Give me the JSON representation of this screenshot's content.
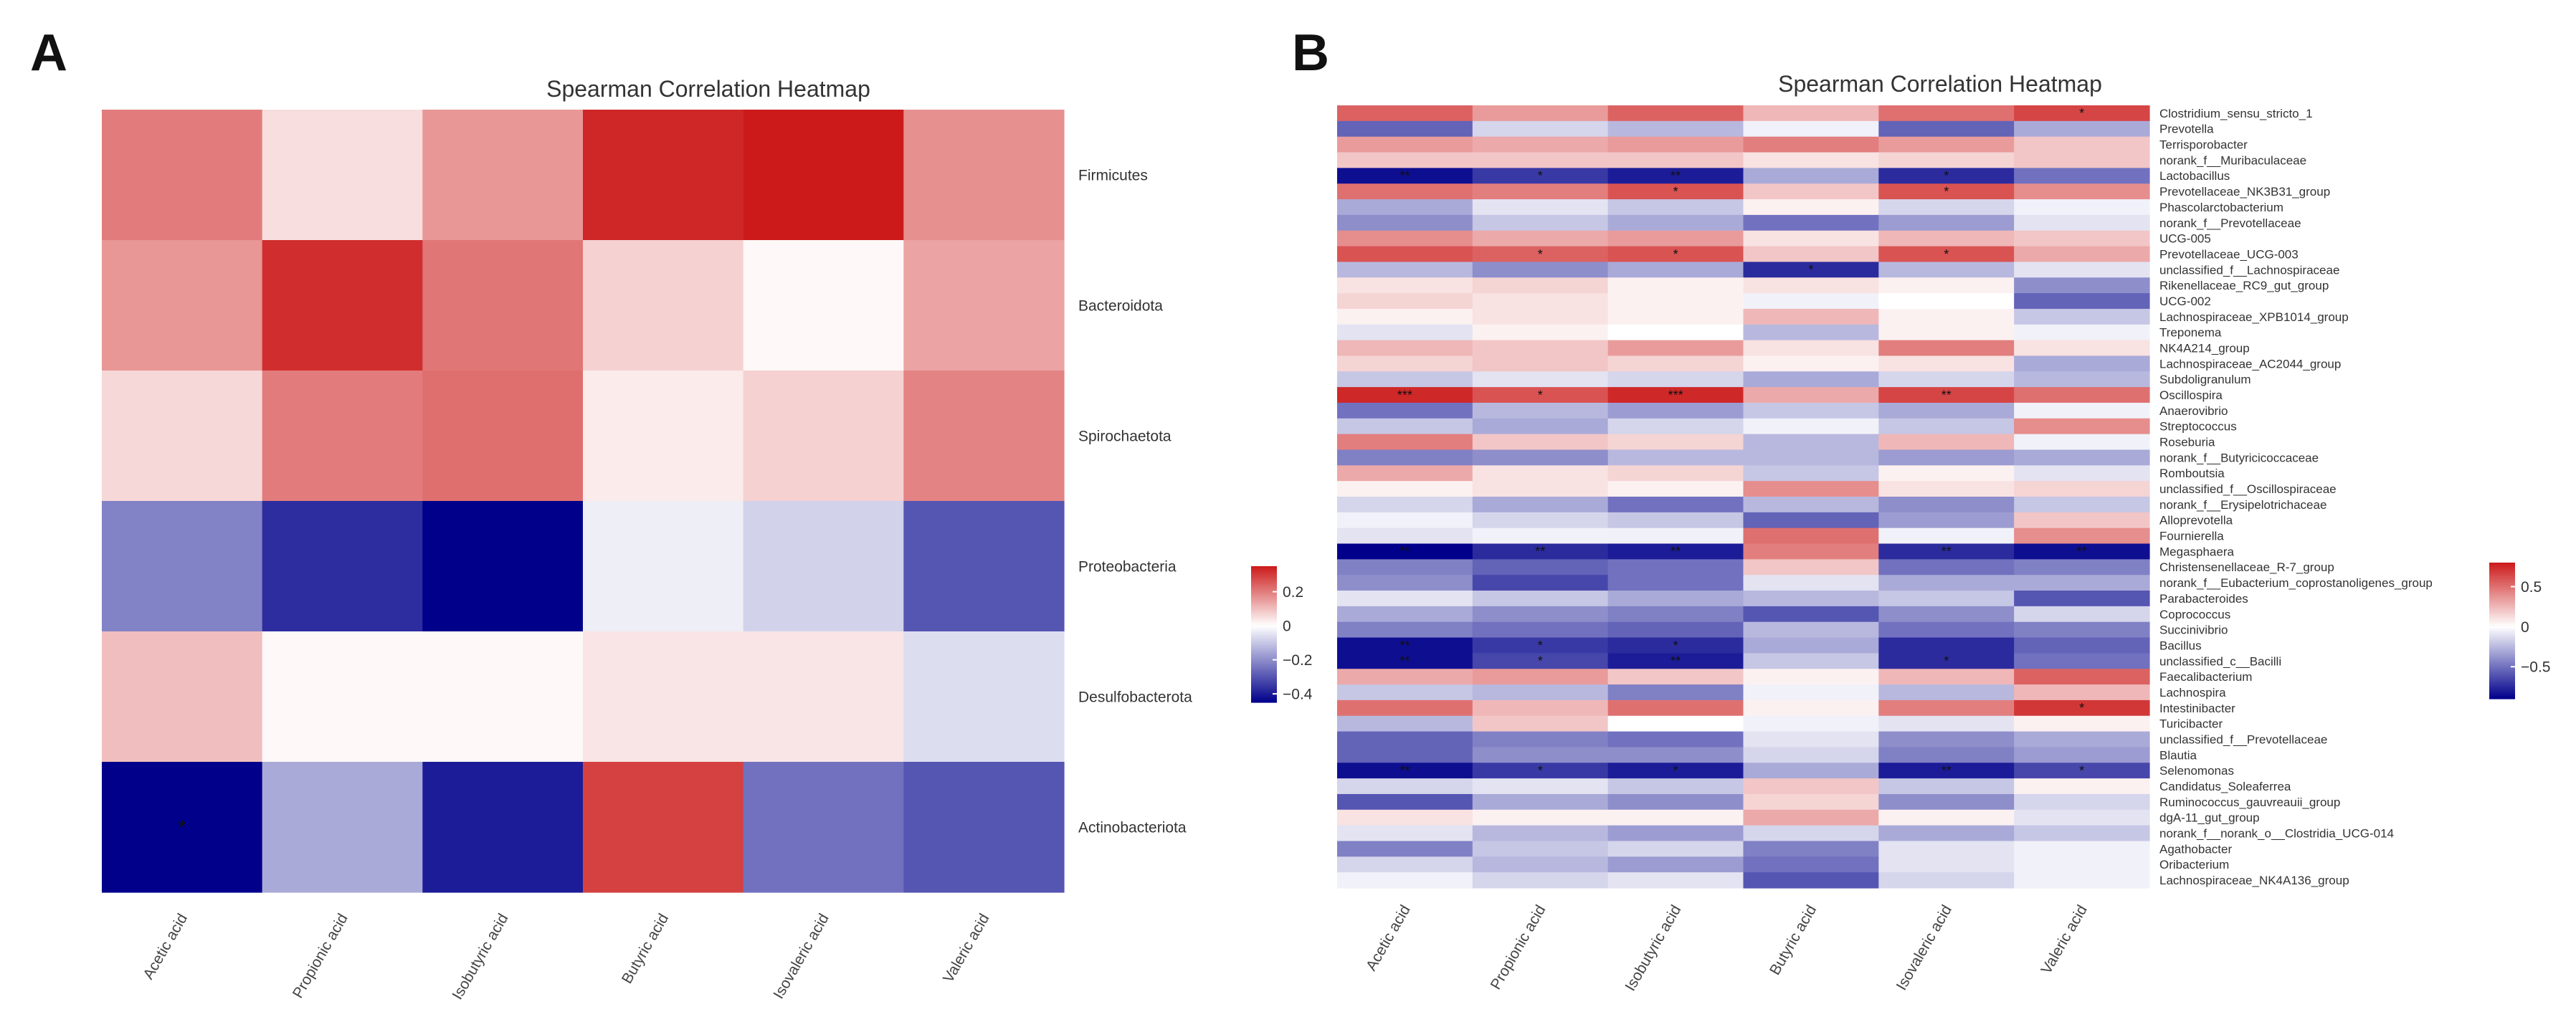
{
  "chart_data": [
    {
      "panel_label": "A",
      "type": "heatmap",
      "title": "Spearman Correlation Heatmap",
      "x_categories": [
        "Acetic acid",
        "Propionic acid",
        "Isobutyric acid",
        "Butyric acid",
        "Isovaleric acid",
        "Valeric acid"
      ],
      "y_categories": [
        "Firmicutes",
        "Bacteroidota",
        "Spirochaetota",
        "Proteobacteria",
        "Desulfobacterota",
        "Actinobacteriota"
      ],
      "values": [
        [
          0.2,
          0.05,
          0.16,
          0.33,
          0.35,
          0.17
        ],
        [
          0.16,
          0.32,
          0.21,
          0.07,
          0.01,
          0.14
        ],
        [
          0.06,
          0.2,
          0.22,
          0.03,
          0.07,
          0.19
        ],
        [
          -0.22,
          -0.37,
          -0.45,
          -0.03,
          -0.08,
          -0.3
        ],
        [
          0.1,
          0.01,
          0.01,
          0.04,
          0.04,
          -0.06
        ],
        [
          -0.45,
          -0.15,
          -0.4,
          0.29,
          -0.25,
          -0.3
        ]
      ],
      "significance": [
        [
          "",
          "",
          "",
          "",
          "",
          ""
        ],
        [
          "",
          "",
          "",
          "",
          "",
          ""
        ],
        [
          "",
          "",
          "",
          "",
          "",
          ""
        ],
        [
          "",
          "",
          "",
          "",
          "",
          ""
        ],
        [
          "",
          "",
          "",
          "",
          "",
          ""
        ],
        [
          "*",
          "",
          "",
          "",
          "",
          ""
        ]
      ],
      "colorbar": {
        "min": -0.45,
        "max": 0.35,
        "ticks": [
          0.2,
          0,
          -0.2,
          -0.4
        ],
        "tick_labels": [
          "0.2",
          "0",
          "−0.2",
          "−0.4"
        ]
      },
      "colors": {
        "low": "#00008b",
        "mid": "#ffffff",
        "high": "#cc1a1a"
      }
    },
    {
      "panel_label": "B",
      "type": "heatmap",
      "title": "Spearman Correlation Heatmap",
      "x_categories": [
        "Acetic acid",
        "Propionic acid",
        "Isobutyric acid",
        "Butyric acid",
        "Isovaleric acid",
        "Valeric acid"
      ],
      "y_categories": [
        "Clostridium_sensu_stricto_1",
        "Prevotella",
        "Terrisporobacter",
        "norank_f__Muribaculaceae",
        "Lactobacillus",
        "Prevotellaceae_NK3B31_group",
        "Phascolarctobacterium",
        "norank_f__Prevotellaceae",
        "UCG-005",
        "Prevotellaceae_UCG-003",
        "unclassified_f__Lachnospiraceae",
        "Rikenellaceae_RC9_gut_group",
        "UCG-002",
        "Lachnospiraceae_XPB1014_group",
        "Treponema",
        "NK4A214_group",
        "Lachnospiraceae_AC2044_group",
        "Subdoligranulum",
        "Oscillospira",
        "Anaerovibrio",
        "Streptococcus",
        "Roseburia",
        "norank_f__Butyricicoccaceae",
        "Romboutsia",
        "unclassified_f__Oscillospiraceae",
        "norank_f__Erysipelotrichaceae",
        "Alloprevotella",
        "Fournierella",
        "Megasphaera",
        "Christensenellaceae_R-7_group",
        "norank_f__Eubacterium_coprostanoligenes_group",
        "Parabacteroides",
        "Coprococcus",
        "Succinivibrio",
        "Bacillus",
        "unclassified_c__Bacilli",
        "Faecalibacterium",
        "Lachnospira",
        "Intestinibacter",
        "Turicibacter",
        "unclassified_f__Prevotellaceae",
        "Blautia",
        "Selenomonas",
        "Candidatus_Soleaferrea",
        "Ruminococcus_gauvreauii_group",
        "dgA-11_gut_group",
        "norank_f__norank_o__Clostridia_UCG-014",
        "Agathobacter",
        "Oribacterium",
        "Lachnospiraceae_NK4A136_group"
      ],
      "values": [
        [
          0.55,
          0.35,
          0.55,
          0.25,
          0.5,
          0.65
        ],
        [
          -0.55,
          -0.15,
          -0.25,
          -0.05,
          -0.55,
          -0.3
        ],
        [
          0.35,
          0.3,
          0.35,
          0.45,
          0.35,
          0.2
        ],
        [
          0.2,
          0.2,
          0.2,
          0.1,
          0.15,
          0.2
        ],
        [
          -0.85,
          -0.7,
          -0.8,
          -0.3,
          -0.75,
          -0.5
        ],
        [
          0.5,
          0.45,
          0.6,
          0.2,
          0.6,
          0.4
        ],
        [
          -0.3,
          -0.1,
          -0.2,
          0.05,
          -0.15,
          -0.05
        ],
        [
          -0.4,
          -0.2,
          -0.3,
          -0.5,
          -0.35,
          -0.1
        ],
        [
          0.4,
          0.3,
          0.35,
          0.1,
          0.25,
          0.2
        ],
        [
          0.6,
          0.55,
          0.6,
          0.2,
          0.6,
          0.3
        ],
        [
          -0.25,
          -0.4,
          -0.3,
          -0.75,
          -0.25,
          -0.1
        ],
        [
          0.1,
          0.15,
          0.05,
          0.1,
          0.05,
          -0.4
        ],
        [
          0.15,
          0.1,
          0.05,
          -0.05,
          0.0,
          -0.55
        ],
        [
          0.05,
          0.1,
          0.05,
          0.25,
          0.05,
          -0.2
        ],
        [
          -0.1,
          0.05,
          0.0,
          -0.25,
          0.05,
          -0.05
        ],
        [
          0.25,
          0.2,
          0.35,
          0.1,
          0.45,
          0.1
        ],
        [
          0.15,
          0.2,
          0.15,
          0.05,
          0.1,
          -0.3
        ],
        [
          -0.2,
          -0.1,
          -0.15,
          -0.3,
          -0.15,
          -0.25
        ],
        [
          0.75,
          0.6,
          0.75,
          0.3,
          0.65,
          0.5
        ],
        [
          -0.5,
          -0.25,
          -0.35,
          -0.2,
          -0.3,
          -0.05
        ],
        [
          -0.2,
          -0.3,
          -0.15,
          -0.05,
          -0.2,
          0.4
        ],
        [
          0.45,
          0.2,
          0.15,
          -0.25,
          0.25,
          -0.05
        ],
        [
          -0.45,
          -0.4,
          -0.25,
          -0.25,
          -0.35,
          -0.3
        ],
        [
          0.3,
          0.1,
          0.15,
          -0.2,
          0.05,
          -0.1
        ],
        [
          0.05,
          0.1,
          0.05,
          0.4,
          0.1,
          0.15
        ],
        [
          -0.15,
          -0.3,
          -0.5,
          -0.25,
          -0.4,
          -0.2
        ],
        [
          -0.05,
          -0.15,
          -0.2,
          -0.55,
          -0.35,
          0.2
        ],
        [
          -0.1,
          -0.05,
          -0.05,
          0.5,
          -0.05,
          0.4
        ],
        [
          -0.9,
          -0.75,
          -0.8,
          0.45,
          -0.75,
          -0.85
        ],
        [
          -0.45,
          -0.55,
          -0.5,
          0.2,
          -0.5,
          -0.45
        ],
        [
          -0.4,
          -0.65,
          -0.5,
          -0.1,
          -0.3,
          -0.3
        ],
        [
          -0.1,
          -0.2,
          -0.3,
          -0.25,
          -0.2,
          -0.6
        ],
        [
          -0.3,
          -0.4,
          -0.45,
          -0.6,
          -0.4,
          -0.15
        ],
        [
          -0.45,
          -0.5,
          -0.55,
          -0.25,
          -0.5,
          -0.45
        ],
        [
          -0.85,
          -0.7,
          -0.75,
          -0.3,
          -0.75,
          -0.55
        ],
        [
          -0.85,
          -0.65,
          -0.8,
          -0.2,
          -0.75,
          -0.5
        ],
        [
          0.3,
          0.35,
          0.2,
          0.05,
          0.25,
          0.55
        ],
        [
          -0.2,
          -0.25,
          -0.45,
          -0.05,
          -0.25,
          0.25
        ],
        [
          0.5,
          0.25,
          0.5,
          0.05,
          0.45,
          0.7
        ],
        [
          -0.25,
          0.2,
          0.0,
          -0.05,
          -0.1,
          0.05
        ],
        [
          -0.55,
          -0.45,
          -0.5,
          -0.1,
          -0.4,
          -0.3
        ],
        [
          -0.55,
          -0.4,
          -0.4,
          -0.15,
          -0.45,
          -0.35
        ],
        [
          -0.85,
          -0.7,
          -0.8,
          -0.3,
          -0.8,
          -0.65
        ],
        [
          -0.15,
          -0.1,
          -0.2,
          0.2,
          -0.2,
          0.05
        ],
        [
          -0.6,
          -0.3,
          -0.4,
          0.15,
          -0.4,
          -0.15
        ],
        [
          0.1,
          0.05,
          0.05,
          0.3,
          0.05,
          -0.1
        ],
        [
          -0.1,
          -0.25,
          -0.35,
          -0.15,
          -0.3,
          -0.2
        ],
        [
          -0.45,
          -0.2,
          -0.15,
          -0.45,
          -0.1,
          -0.05
        ],
        [
          -0.15,
          -0.25,
          -0.35,
          -0.5,
          -0.1,
          -0.05
        ],
        [
          -0.05,
          -0.15,
          -0.1,
          -0.6,
          -0.15,
          -0.05
        ]
      ],
      "significance": [
        [
          "",
          "",
          "",
          "",
          "",
          "*"
        ],
        [
          "",
          "",
          "",
          "",
          "",
          ""
        ],
        [
          "",
          "",
          "",
          "",
          "",
          ""
        ],
        [
          "",
          "",
          "",
          "",
          "",
          ""
        ],
        [
          "**",
          "*",
          "**",
          "",
          "*",
          ""
        ],
        [
          "",
          "",
          "*",
          "",
          "*",
          ""
        ],
        [
          "",
          "",
          "",
          "",
          "",
          ""
        ],
        [
          "",
          "",
          "",
          "",
          "",
          ""
        ],
        [
          "",
          "",
          "",
          "",
          "",
          ""
        ],
        [
          "",
          "*",
          "*",
          "",
          "*",
          ""
        ],
        [
          "",
          "",
          "",
          "*",
          "",
          ""
        ],
        [
          "",
          "",
          "",
          "",
          "",
          ""
        ],
        [
          "",
          "",
          "",
          "",
          "",
          ""
        ],
        [
          "",
          "",
          "",
          "",
          "",
          ""
        ],
        [
          "",
          "",
          "",
          "",
          "",
          ""
        ],
        [
          "",
          "",
          "",
          "",
          "",
          ""
        ],
        [
          "",
          "",
          "",
          "",
          "",
          ""
        ],
        [
          "",
          "",
          "",
          "",
          "",
          ""
        ],
        [
          "***",
          "*",
          "***",
          "",
          "**",
          ""
        ],
        [
          "",
          "",
          "",
          "",
          "",
          ""
        ],
        [
          "",
          "",
          "",
          "",
          "",
          ""
        ],
        [
          "",
          "",
          "",
          "",
          "",
          ""
        ],
        [
          "",
          "",
          "",
          "",
          "",
          ""
        ],
        [
          "",
          "",
          "",
          "",
          "",
          ""
        ],
        [
          "",
          "",
          "",
          "",
          "",
          ""
        ],
        [
          "",
          "",
          "",
          "",
          "",
          ""
        ],
        [
          "",
          "",
          "",
          "",
          "",
          ""
        ],
        [
          "",
          "",
          "",
          "",
          "",
          ""
        ],
        [
          "**",
          "**",
          "**",
          "",
          "**",
          "**"
        ],
        [
          "",
          "",
          "",
          "",
          "",
          ""
        ],
        [
          "",
          "",
          "",
          "",
          "",
          ""
        ],
        [
          "",
          "",
          "",
          "",
          "",
          ""
        ],
        [
          "",
          "",
          "",
          "",
          "",
          ""
        ],
        [
          "",
          "",
          "",
          "",
          "",
          ""
        ],
        [
          "**",
          "*",
          "*",
          "",
          "",
          ""
        ],
        [
          "**",
          "*",
          "**",
          "",
          "*",
          ""
        ],
        [
          "",
          "",
          "",
          "",
          "",
          ""
        ],
        [
          "",
          "",
          "",
          "",
          "",
          ""
        ],
        [
          "",
          "",
          "",
          "",
          "",
          "*"
        ],
        [
          "",
          "",
          "",
          "",
          "",
          ""
        ],
        [
          "",
          "",
          "",
          "",
          "",
          ""
        ],
        [
          "",
          "",
          "",
          "",
          "",
          ""
        ],
        [
          "**",
          "*",
          "*",
          "",
          "**",
          "*"
        ],
        [
          "",
          "",
          "",
          "",
          "",
          ""
        ],
        [
          "",
          "",
          "",
          "",
          "",
          ""
        ],
        [
          "",
          "",
          "",
          "",
          "",
          ""
        ],
        [
          "",
          "",
          "",
          "",
          "",
          ""
        ],
        [
          "",
          "",
          "",
          "",
          "",
          ""
        ],
        [
          "",
          "",
          "",
          "",
          "",
          ""
        ],
        [
          "",
          "",
          "",
          "",
          "",
          ""
        ]
      ],
      "colorbar": {
        "min": -0.9,
        "max": 0.8,
        "ticks": [
          0.5,
          0,
          -0.5
        ],
        "tick_labels": [
          "0.5",
          "0",
          "−0.5"
        ]
      },
      "colors": {
        "low": "#00008b",
        "mid": "#ffffff",
        "high": "#cc1a1a"
      }
    }
  ]
}
